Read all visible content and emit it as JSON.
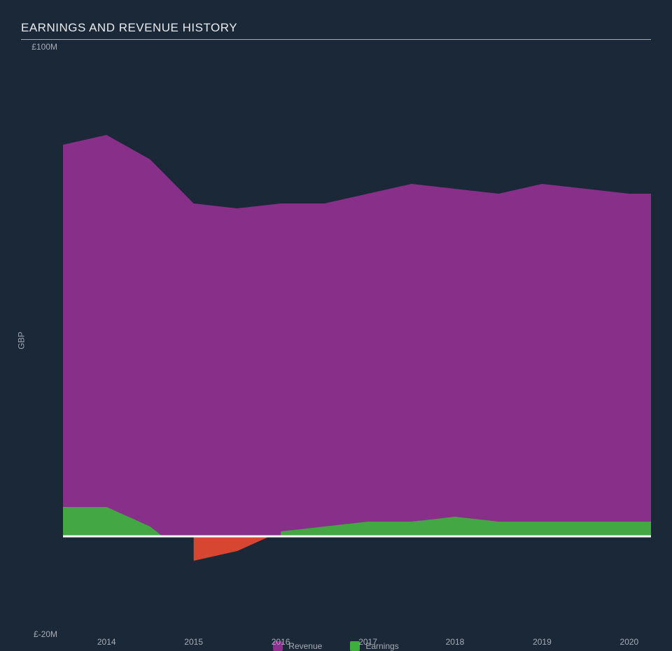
{
  "chart": {
    "type": "area",
    "title": "EARNINGS AND REVENUE HISTORY",
    "background_color": "#1b2838",
    "title_color": "#e8ebef",
    "title_fontsize": 17,
    "axis_text_color": "#a8adb5",
    "axis_fontsize": 12,
    "y_label": "GBP",
    "y_min": -20,
    "y_max": 100,
    "y_ticks": [
      {
        "value": 100,
        "label": "£100M"
      },
      {
        "value": -20,
        "label": "£-20M"
      }
    ],
    "baseline_value": 0,
    "baseline_color": "#ffffff",
    "baseline_width": 1,
    "x_ticks": [
      "2014",
      "2015",
      "2016",
      "2017",
      "2018",
      "2019",
      "2020"
    ],
    "series": [
      {
        "name": "Revenue",
        "color": "#8e2f8e",
        "fill_opacity": 0.95,
        "points": [
          {
            "x": 2013.5,
            "y": 80
          },
          {
            "x": 2014.0,
            "y": 82
          },
          {
            "x": 2014.5,
            "y": 77
          },
          {
            "x": 2015.0,
            "y": 68
          },
          {
            "x": 2015.5,
            "y": 67
          },
          {
            "x": 2016.0,
            "y": 68
          },
          {
            "x": 2016.5,
            "y": 68
          },
          {
            "x": 2017.0,
            "y": 70
          },
          {
            "x": 2017.5,
            "y": 72
          },
          {
            "x": 2018.0,
            "y": 71
          },
          {
            "x": 2018.5,
            "y": 70
          },
          {
            "x": 2019.0,
            "y": 72
          },
          {
            "x": 2019.5,
            "y": 71
          },
          {
            "x": 2020.0,
            "y": 70
          },
          {
            "x": 2020.25,
            "y": 70
          }
        ],
        "baseline": 0
      },
      {
        "name": "Earnings",
        "positive_color": "#3fae3f",
        "negative_color": "#e0482f",
        "fill_opacity": 0.95,
        "points": [
          {
            "x": 2013.5,
            "y": 6
          },
          {
            "x": 2014.0,
            "y": 6
          },
          {
            "x": 2014.5,
            "y": 2
          },
          {
            "x": 2015.0,
            "y": -5
          },
          {
            "x": 2015.5,
            "y": -3
          },
          {
            "x": 2016.0,
            "y": 1
          },
          {
            "x": 2016.5,
            "y": 2
          },
          {
            "x": 2017.0,
            "y": 3
          },
          {
            "x": 2017.5,
            "y": 3
          },
          {
            "x": 2018.0,
            "y": 4
          },
          {
            "x": 2018.5,
            "y": 3
          },
          {
            "x": 2019.0,
            "y": 3
          },
          {
            "x": 2019.5,
            "y": 3
          },
          {
            "x": 2020.0,
            "y": 3
          },
          {
            "x": 2020.25,
            "y": 3
          }
        ],
        "baseline": 0
      }
    ],
    "x_min": 2013.5,
    "x_max": 2020.25,
    "legend": [
      {
        "label": "Revenue",
        "color": "#8e2f8e"
      },
      {
        "label": "Earnings",
        "color": "#3fae3f"
      }
    ]
  }
}
